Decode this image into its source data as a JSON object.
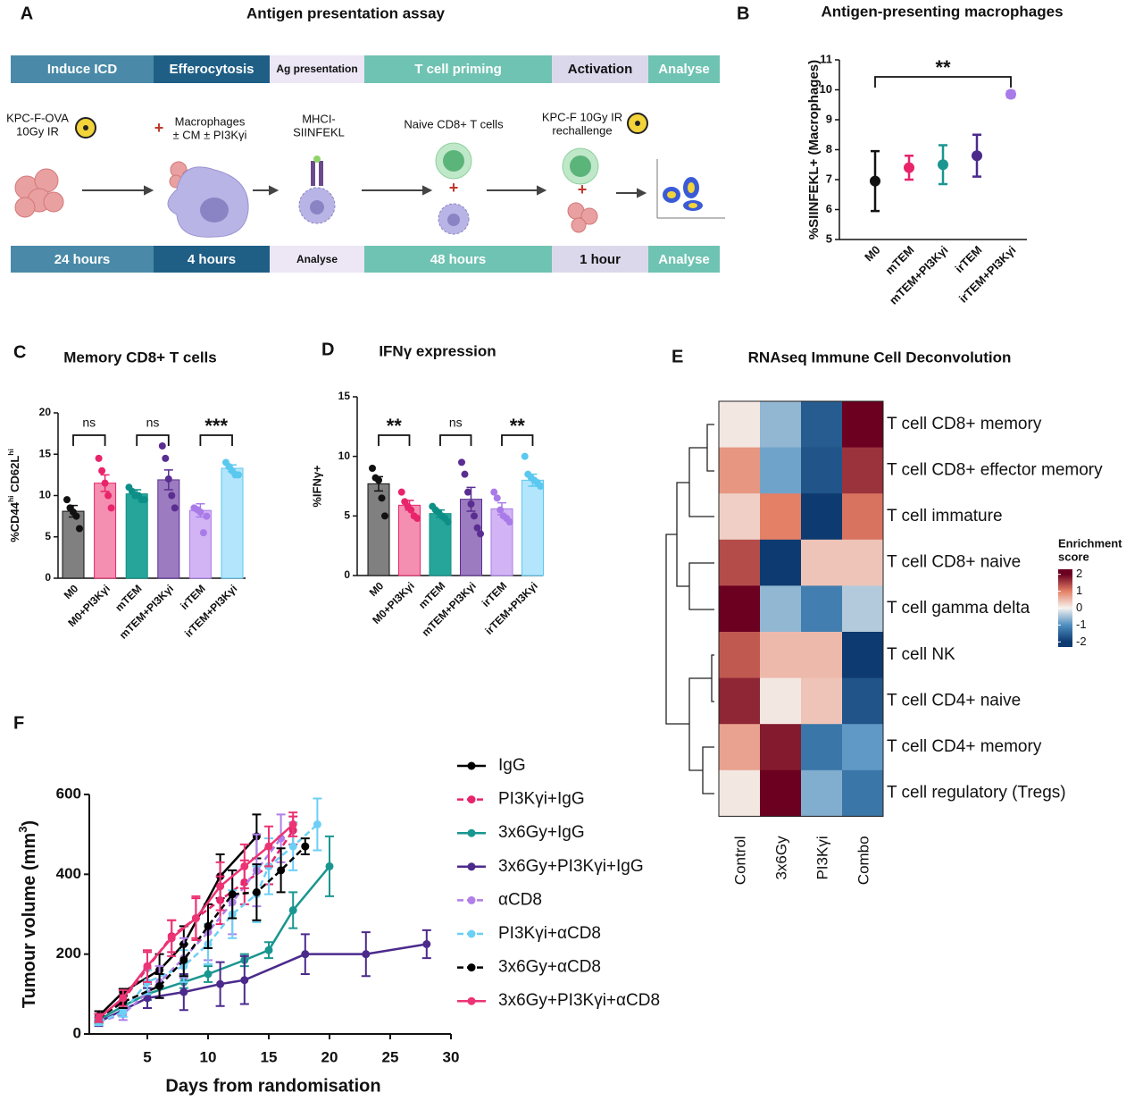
{
  "diagram": {
    "label": "A",
    "title": "Antigen presentation assay",
    "stages": [
      "Induce ICD",
      "Efferocytosis",
      "Ag presentation",
      "T cell priming",
      "Activation",
      "Analyse"
    ],
    "durations": [
      "24 hours",
      "4 hours",
      "Analyse",
      "48 hours",
      "1 hour",
      "Analyse"
    ],
    "steps": [
      [
        "KPC-F-OVA",
        "10Gy IR"
      ],
      [
        "Macrophages",
        "± CM ± PI3Kγi"
      ],
      [
        "MHCI-",
        "SIINFEKL"
      ],
      [
        "Naive CD8+ T cells"
      ],
      [
        "KPC-F 10Gy IR",
        "rechallenge"
      ]
    ],
    "plus": "+"
  },
  "chart_data": [
    {
      "label": "B",
      "type": "dot",
      "title": "Antigen-presenting macrophages",
      "y_label": "%SIINFEKL+ (Macrophages)",
      "categories": [
        "M0",
        "mTEM",
        "mTEM+PI3Kγi",
        "irTEM",
        "irTEM+PI3Kγi"
      ],
      "values": [
        6.95,
        7.4,
        7.5,
        7.8,
        9.85
      ],
      "errors": [
        1.0,
        0.4,
        0.65,
        0.7,
        0.1
      ],
      "colors": [
        "#111111",
        "#e8246b",
        "#1a9690",
        "#4b2a8c",
        "#a97be8"
      ],
      "ylim": [
        5,
        11
      ],
      "yticks": [
        5,
        6,
        7,
        8,
        9,
        10,
        11
      ],
      "annotations": [
        {
          "text": "**",
          "between": [
            "M0",
            "irTEM+PI3Kγi"
          ]
        }
      ]
    },
    {
      "label": "C",
      "type": "bar",
      "title": "Memory CD8+ T cells",
      "y_label": [
        "%CD44",
        "hi",
        " CD62L",
        "hi"
      ],
      "categories": [
        "M0",
        "M0+PI3Kγi",
        "mTEM",
        "mTEM+PI3Kγi",
        "irTEM",
        "irTEM+PI3Kγi"
      ],
      "values": [
        8.1,
        11.5,
        10.2,
        11.9,
        8.2,
        13.3
      ],
      "errors": [
        0.7,
        1.0,
        0.5,
        1.2,
        0.8,
        0.4
      ],
      "points": [
        [
          9.5,
          8.5,
          8,
          7.5,
          6
        ],
        [
          14.5,
          13,
          11.5,
          10,
          8.5
        ],
        [
          11,
          10.5,
          10,
          10,
          9.5,
          9.5
        ],
        [
          16,
          14.5,
          12,
          10,
          8.5
        ],
        [
          8.5,
          8.3,
          8,
          5.5,
          7.5
        ],
        [
          14,
          13.5,
          13,
          12.5,
          12.5
        ]
      ],
      "colors": [
        "#808080",
        "#f48fb1",
        "#26a69a",
        "#9c7bc0",
        "#d2b4f5",
        "#b3e5fc"
      ],
      "point_colors": [
        "#111111",
        "#e8246b",
        "#0d8f87",
        "#5a2d91",
        "#a97be8",
        "#5bc8ef"
      ],
      "ylim": [
        0,
        20
      ],
      "yticks": [
        0,
        5,
        10,
        15,
        20
      ],
      "annotations": [
        {
          "text": "ns",
          "between": [
            "M0",
            "M0+PI3Kγi"
          ]
        },
        {
          "text": "ns",
          "between": [
            "mTEM",
            "mTEM+PI3Kγi"
          ]
        },
        {
          "text": "***",
          "between": [
            "irTEM",
            "irTEM+PI3Kγi"
          ]
        }
      ]
    },
    {
      "label": "D",
      "type": "bar",
      "title": "IFNγ expression",
      "y_label": "%IFNγ+",
      "categories": [
        "M0",
        "M0+PI3Kγi",
        "mTEM",
        "mTEM+PI3Kγi",
        "irTEM",
        "irTEM+PI3Kγi"
      ],
      "values": [
        7.7,
        5.9,
        5.2,
        6.4,
        5.6,
        8.0
      ],
      "errors": [
        0.6,
        0.4,
        0.3,
        1.0,
        0.5,
        0.5
      ],
      "points": [
        [
          9,
          8.2,
          8,
          6.5,
          5
        ],
        [
          7,
          6.2,
          5.8,
          5.5,
          5,
          4.8
        ],
        [
          5.8,
          5.5,
          5.3,
          5,
          4.8,
          4.5
        ],
        [
          9.5,
          8.5,
          7,
          6,
          5,
          4,
          3.5
        ],
        [
          7,
          6.5,
          5.5,
          5,
          4.8,
          4.5
        ],
        [
          10,
          8.5,
          8.2,
          8,
          7.8,
          7.5
        ]
      ],
      "colors": [
        "#808080",
        "#f48fb1",
        "#26a69a",
        "#9c7bc0",
        "#d2b4f5",
        "#b3e5fc"
      ],
      "point_colors": [
        "#111111",
        "#e8246b",
        "#0d8f87",
        "#5a2d91",
        "#a97be8",
        "#5bc8ef"
      ],
      "ylim": [
        0,
        15
      ],
      "yticks": [
        0,
        5,
        10,
        15
      ],
      "annotations": [
        {
          "text": "**",
          "between": [
            "M0",
            "M0+PI3Kγi"
          ]
        },
        {
          "text": "ns",
          "between": [
            "mTEM",
            "mTEM+PI3Kγi"
          ]
        },
        {
          "text": "**",
          "between": [
            "irTEM",
            "irTEM+PI3Kγi"
          ]
        }
      ]
    },
    {
      "label": "E",
      "type": "heatmap",
      "title": "RNAseq Immune Cell Deconvolution",
      "rows": [
        "T cell CD8+ memory",
        "T cell CD8+ effector memory",
        "T cell immature",
        "T cell CD8+ naive",
        "T cell gamma delta",
        "T cell NK",
        "T cell CD4+ naive",
        "T cell CD4+ memory",
        "T cell regulatory (Tregs)"
      ],
      "columns": [
        "Control",
        "3x6Gy",
        "PI3Kγi",
        "Combo"
      ],
      "values": [
        [
          0.1,
          -0.6,
          -1.6,
          2.0
        ],
        [
          0.8,
          -0.8,
          -1.7,
          1.6
        ],
        [
          0.3,
          1.0,
          -2.0,
          1.1
        ],
        [
          1.4,
          -2.0,
          0.4,
          0.4
        ],
        [
          2.1,
          -0.6,
          -1.2,
          -0.4
        ],
        [
          1.3,
          0.5,
          0.5,
          -2.0
        ],
        [
          1.7,
          0.1,
          0.4,
          -1.7
        ],
        [
          0.7,
          1.8,
          -1.3,
          -0.9
        ],
        [
          0.1,
          2.1,
          -0.7,
          -1.3
        ]
      ],
      "colorbar_title": [
        "Enrichment",
        "score"
      ],
      "zlim": [
        -2.3,
        2.3
      ],
      "zticks": [
        2,
        1,
        0,
        -1,
        -2
      ],
      "colorscale": [
        "#6b0020",
        "#e48066",
        "#f5f2ef",
        "#4f8fc0",
        "#0d3a70"
      ]
    },
    {
      "label": "F",
      "type": "line",
      "x_label": "Days from randomisation",
      "y_label": [
        "Tumour volume (mm",
        "3",
        ")"
      ],
      "xlim": [
        0,
        30
      ],
      "xticks": [
        5,
        10,
        15,
        20,
        25,
        30
      ],
      "ylim": [
        0,
        600
      ],
      "yticks": [
        0,
        200,
        400,
        600
      ],
      "series": [
        {
          "name": "IgG",
          "color": "#000000",
          "dash": false,
          "x": [
            1,
            3,
            6,
            8,
            11,
            14
          ],
          "values": [
            45,
            105,
            160,
            225,
            395,
            495
          ],
          "errors": [
            12,
            8,
            40,
            45,
            55,
            55
          ]
        },
        {
          "name": "PI3Kγi+IgG",
          "color": "#e8246b",
          "dash": true,
          "x": [
            1,
            3,
            5,
            7,
            9,
            11,
            13,
            15,
            17
          ],
          "values": [
            40,
            85,
            165,
            245,
            290,
            335,
            380,
            420,
            510
          ],
          "errors": [
            10,
            12,
            40,
            40,
            50,
            60,
            55,
            45,
            35
          ]
        },
        {
          "name": "3x6Gy+IgG",
          "color": "#1a9690",
          "dash": false,
          "x": [
            1,
            3,
            5,
            8,
            10,
            13,
            15,
            17,
            20
          ],
          "values": [
            35,
            70,
            100,
            130,
            150,
            185,
            210,
            310,
            420
          ],
          "errors": [
            8,
            12,
            15,
            15,
            20,
            15,
            20,
            45,
            75
          ]
        },
        {
          "name": "3x6Gy+PI3Kγi+IgG",
          "color": "#4b2a8c",
          "dash": false,
          "x": [
            1,
            5,
            8,
            11,
            13,
            18,
            23,
            28
          ],
          "values": [
            30,
            90,
            105,
            125,
            135,
            200,
            200,
            225
          ],
          "errors": [
            10,
            25,
            45,
            55,
            60,
            50,
            55,
            35
          ]
        },
        {
          "name": "αCD8",
          "color": "#b07fe8",
          "dash": true,
          "x": [
            1,
            3,
            6,
            8,
            10,
            12,
            14,
            16
          ],
          "values": [
            30,
            50,
            130,
            190,
            255,
            330,
            410,
            490
          ],
          "errors": [
            8,
            15,
            40,
            50,
            70,
            80,
            90,
            60
          ]
        },
        {
          "name": "PI3Kγi+αCD8",
          "color": "#6ccff6",
          "dash": true,
          "x": [
            1,
            3,
            5,
            8,
            10,
            12,
            14,
            15,
            17,
            19
          ],
          "values": [
            30,
            55,
            130,
            170,
            225,
            300,
            350,
            420,
            470,
            525
          ],
          "errors": [
            8,
            12,
            30,
            40,
            50,
            60,
            70,
            70,
            60,
            65
          ]
        },
        {
          "name": "3x6Gy+αCD8",
          "color": "#000000",
          "dash": true,
          "x": [
            1,
            3,
            6,
            8,
            10,
            12,
            14,
            16,
            18
          ],
          "values": [
            40,
            80,
            120,
            185,
            270,
            350,
            355,
            410,
            470
          ],
          "errors": [
            10,
            15,
            30,
            40,
            55,
            60,
            70,
            55,
            20
          ]
        },
        {
          "name": "3x6Gy+PI3Kγi+αCD8",
          "color": "#ec3474",
          "dash": false,
          "x": [
            1,
            3,
            5,
            7,
            9,
            11,
            13,
            15,
            17
          ],
          "values": [
            40,
            90,
            170,
            240,
            290,
            370,
            420,
            470,
            525
          ],
          "errors": [
            10,
            20,
            40,
            45,
            55,
            60,
            55,
            50,
            30
          ]
        }
      ]
    }
  ]
}
